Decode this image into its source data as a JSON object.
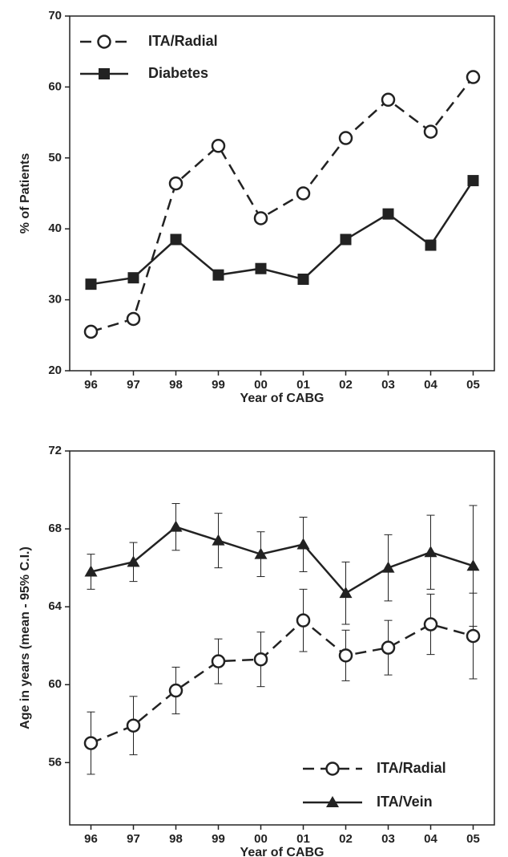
{
  "chart_data": [
    {
      "type": "line",
      "ylabel": "% of Patients",
      "xlabel": "Year of CABG",
      "categories": [
        "96",
        "97",
        "98",
        "99",
        "00",
        "01",
        "02",
        "03",
        "04",
        "05"
      ],
      "ylim": [
        20,
        70
      ],
      "yticks": [
        20,
        30,
        40,
        50,
        60,
        70
      ],
      "legend": "upper left",
      "series": [
        {
          "name": "ITA/Radial",
          "color": "#222222",
          "marker": "open-circle",
          "dashed": true,
          "values": [
            25.5,
            27.3,
            46.4,
            51.7,
            41.5,
            45,
            52.8,
            58.2,
            53.7,
            61.4
          ]
        },
        {
          "name": "Diabetes",
          "color": "#222222",
          "marker": "filled-square",
          "dashed": false,
          "values": [
            32.2,
            33.1,
            38.5,
            33.5,
            34.4,
            32.9,
            38.5,
            42.1,
            37.7,
            46.8
          ]
        }
      ]
    },
    {
      "type": "line",
      "ylabel": "Age in years (mean - 95% C.I.)",
      "xlabel": "Year of CABG",
      "categories": [
        "96",
        "97",
        "98",
        "99",
        "00",
        "01",
        "02",
        "03",
        "04",
        "05"
      ],
      "ylim": [
        52.8,
        72
      ],
      "yticks": [
        56,
        60,
        64,
        68,
        72
      ],
      "legend": "lower right",
      "series": [
        {
          "name": "ITA/Radial",
          "color": "#222222",
          "marker": "open-circle",
          "dashed": true,
          "values": [
            57.0,
            57.9,
            59.7,
            61.2,
            61.3,
            63.3,
            61.5,
            61.9,
            63.1,
            62.5
          ],
          "errors": [
            1.6,
            1.5,
            1.2,
            1.15,
            1.4,
            1.6,
            1.3,
            1.4,
            1.55,
            2.2
          ]
        },
        {
          "name": "ITA/Vein",
          "color": "#222222",
          "marker": "filled-triangle",
          "dashed": false,
          "values": [
            65.8,
            66.3,
            68.1,
            67.4,
            66.7,
            67.2,
            64.7,
            66.0,
            66.8,
            66.1
          ],
          "errors": [
            0.9,
            1.0,
            1.2,
            1.4,
            1.15,
            1.4,
            1.6,
            1.7,
            1.9,
            3.1
          ]
        }
      ]
    }
  ]
}
